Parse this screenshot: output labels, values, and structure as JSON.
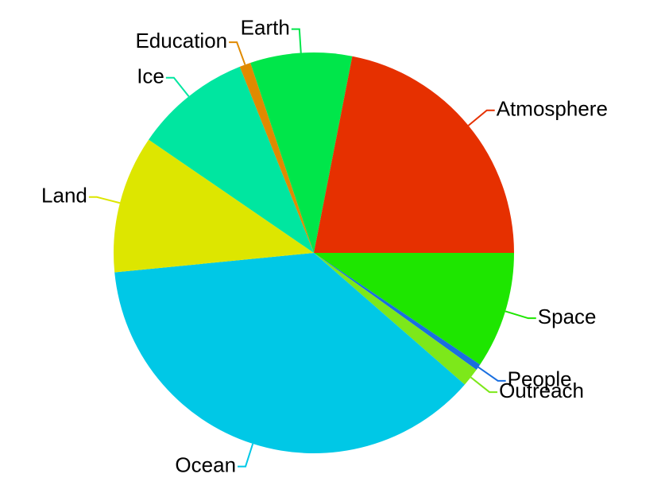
{
  "chart_data": {
    "type": "pie",
    "categories": [
      "Space",
      "People",
      "Outreach",
      "Ocean",
      "Land",
      "Ice",
      "Education",
      "Earth",
      "Atmosphere"
    ],
    "values": [
      9.4,
      0.5,
      1.5,
      37,
      11.1,
      9.4,
      0.9,
      8.2,
      21.9
    ],
    "colors": [
      "#1ee600",
      "#1a6fe0",
      "#7de81a",
      "#00c8e6",
      "#dde600",
      "#00e6a0",
      "#e08a00",
      "#00e64a",
      "#e63000"
    ]
  }
}
